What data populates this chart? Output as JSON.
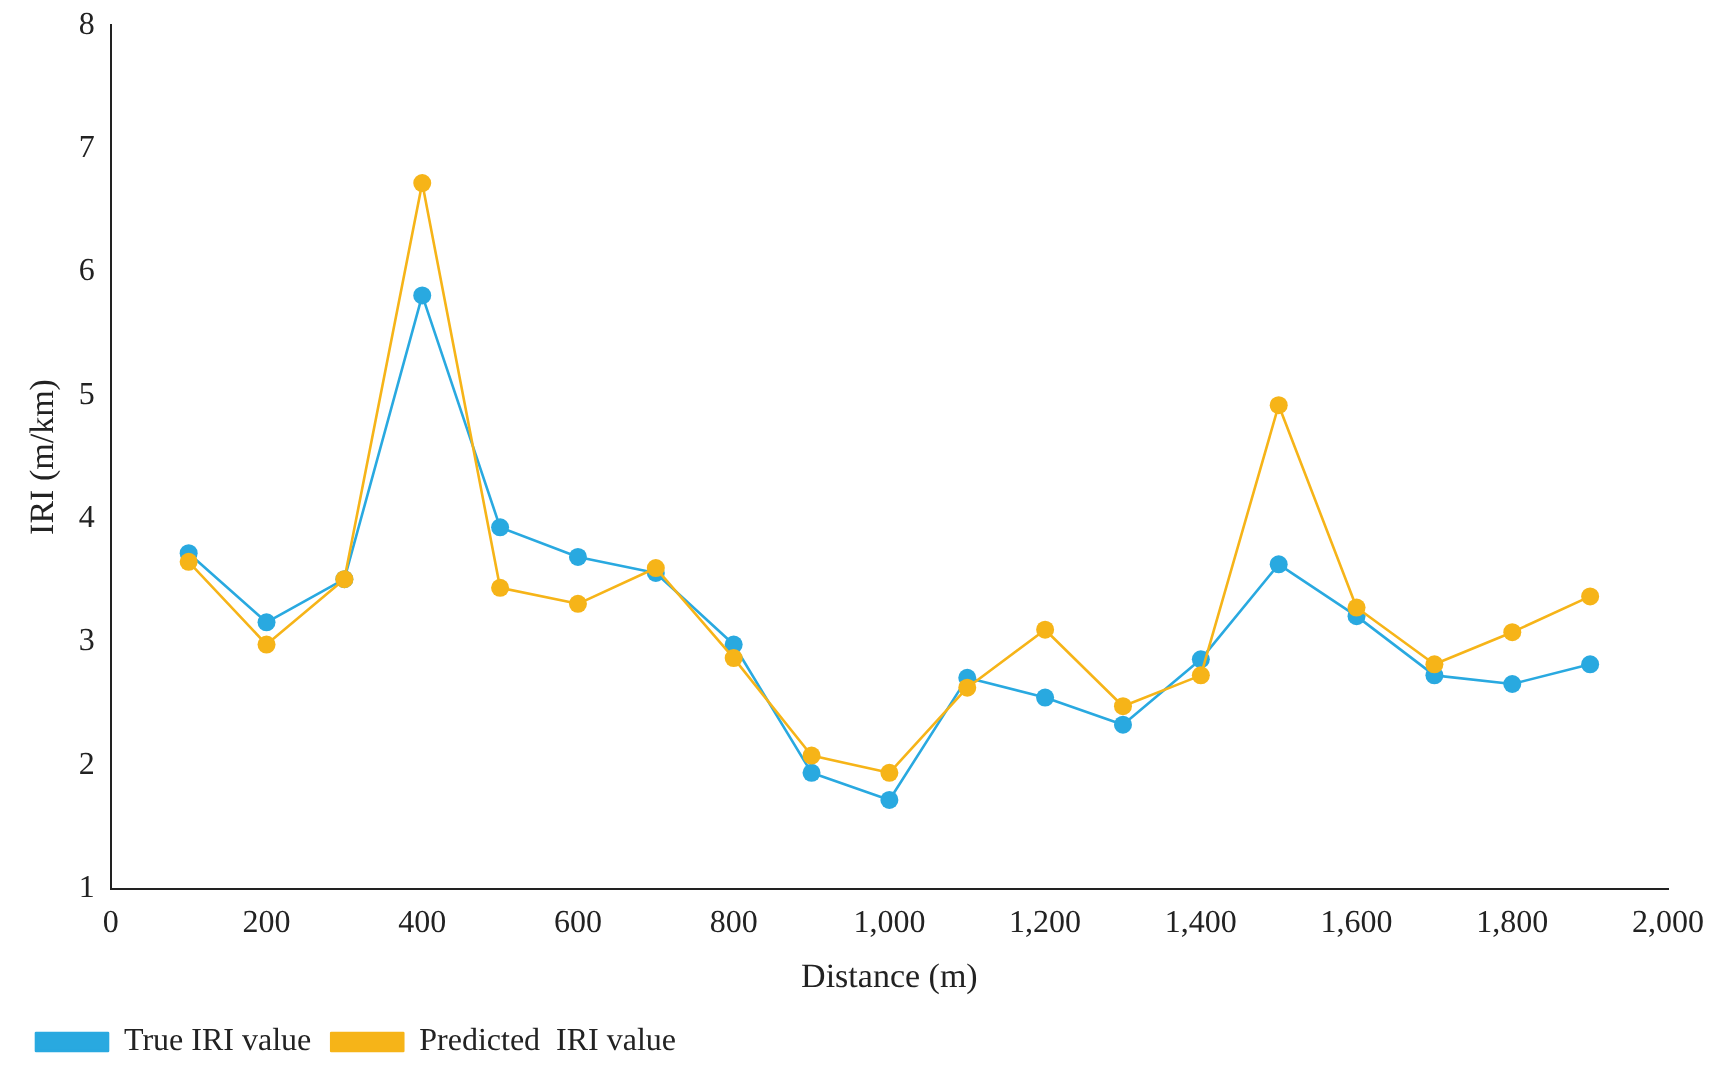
{
  "chart_data": {
    "type": "line",
    "xlabel": "Distance (m)",
    "ylabel": "IRI (m/km)",
    "x": [
      100,
      200,
      300,
      400,
      500,
      600,
      700,
      800,
      900,
      1000,
      1100,
      1200,
      1300,
      1400,
      1500,
      1600,
      1700,
      1800,
      1900
    ],
    "series": [
      {
        "name": "True IRI value",
        "color": "#29a9e0",
        "values": [
          3.72,
          3.16,
          3.51,
          5.81,
          3.93,
          3.69,
          3.56,
          2.98,
          1.94,
          1.72,
          2.71,
          2.55,
          2.33,
          2.86,
          3.63,
          3.21,
          2.73,
          2.66,
          2.82
        ]
      },
      {
        "name": "Predicted  IRI value",
        "color": "#f6b418",
        "values": [
          3.65,
          2.98,
          3.51,
          6.72,
          3.44,
          3.31,
          3.6,
          2.87,
          2.08,
          1.94,
          2.63,
          3.1,
          2.48,
          2.73,
          4.92,
          3.28,
          2.82,
          3.08,
          3.37
        ]
      }
    ],
    "xlim": [
      0,
      2000
    ],
    "xticks": [
      0,
      200,
      400,
      600,
      800,
      {
        "value": 1000,
        "label": "1,000"
      },
      {
        "value": 1200,
        "label": "1,200"
      },
      {
        "value": 1400,
        "label": "1,400"
      },
      {
        "value": 1600,
        "label": "1,600"
      },
      {
        "value": 1800,
        "label": "1,800"
      },
      {
        "value": 2000,
        "label": "2,000"
      }
    ],
    "ylim": [
      1,
      8
    ],
    "yticks": [
      1,
      2,
      3,
      4,
      5,
      6,
      7,
      8
    ],
    "grid": false,
    "legend": "bottom left",
    "marker": "circle",
    "line_style": "solid"
  }
}
